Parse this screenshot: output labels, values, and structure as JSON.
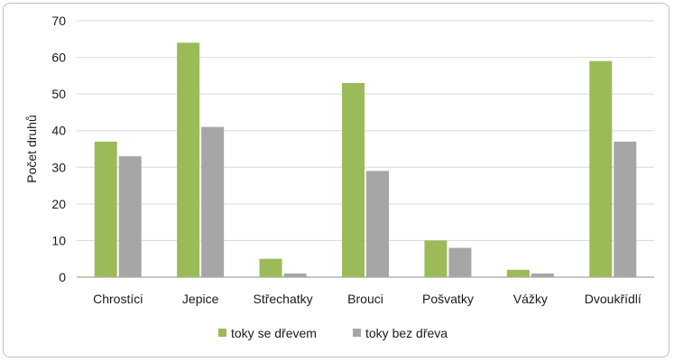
{
  "chart_data": {
    "type": "bar",
    "title": "",
    "xlabel": "",
    "ylabel": "Počet druhů",
    "ylim": [
      0,
      70
    ],
    "yticks": [
      0,
      10,
      20,
      30,
      40,
      50,
      60,
      70
    ],
    "grid": true,
    "legend_position": "bottom",
    "categories": [
      "Chrostíci",
      "Jepice",
      "Střechatky",
      "Brouci",
      "Pošvatky",
      "Vážky",
      "Dvoukřídlí"
    ],
    "series": [
      {
        "name": "toky se dřevem",
        "color": "#9bbb59",
        "values": [
          37,
          64,
          5,
          53,
          10,
          2,
          59
        ]
      },
      {
        "name": "toky bez dřeva",
        "color": "#a6a6a6",
        "values": [
          33,
          41,
          1,
          29,
          8,
          1,
          37
        ]
      }
    ]
  }
}
